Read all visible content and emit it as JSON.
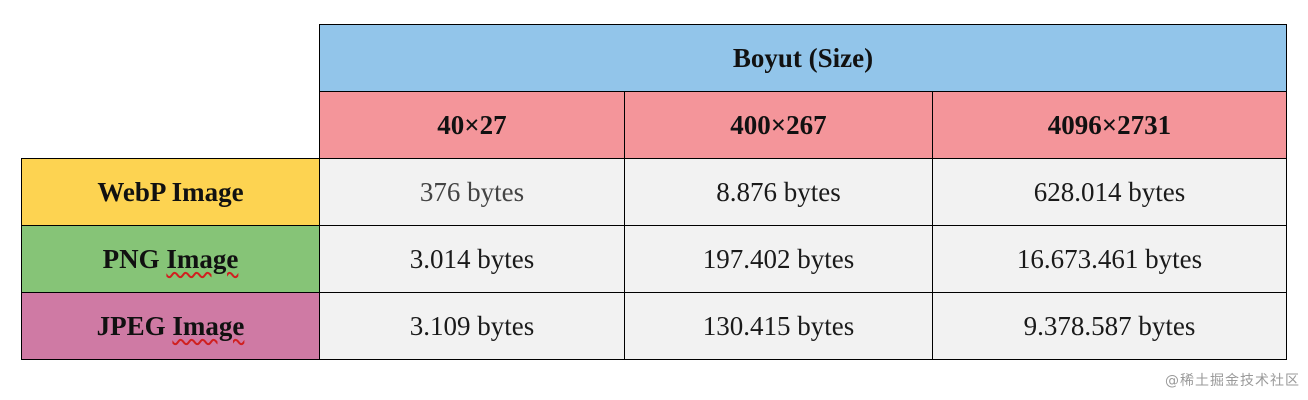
{
  "table": {
    "group_header": "Boyut (Size)",
    "dimensions": [
      "40×27",
      "400×267",
      "4096×2731"
    ],
    "rows": [
      {
        "format": "WebP",
        "format_suffix": " Image",
        "values": [
          "376 bytes",
          "8.876 bytes",
          "628.014 bytes"
        ]
      },
      {
        "format": "PNG",
        "format_suffix": "Image",
        "values": [
          "3.014 bytes",
          "197.402 bytes",
          "16.673.461 bytes"
        ]
      },
      {
        "format": "JPEG",
        "format_suffix": "Image",
        "values": [
          "3.109 bytes",
          "130.415 bytes",
          "9.378.587 bytes"
        ]
      }
    ]
  },
  "colors": {
    "group_header_bg": "#92c5ea",
    "dimension_header_bg": "#f4959a",
    "webp_bg": "#fdd351",
    "png_bg": "#86c477",
    "jpeg_bg": "#cf7aa4",
    "value_bg": "#f2f2f2"
  },
  "watermark": "@稀土掘金技术社区"
}
